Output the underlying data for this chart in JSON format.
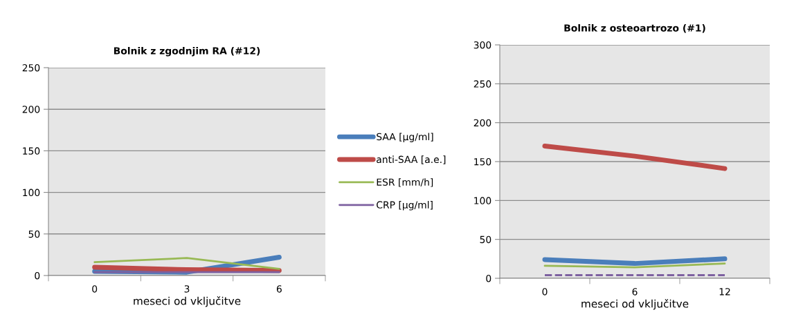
{
  "chart_data": [
    {
      "type": "line",
      "title": "Bolnik z zgodnjim RA (#12)",
      "xlabel": "meseci od vključitve",
      "categories": [
        "0",
        "3",
        "6"
      ],
      "ylim": [
        0,
        250
      ],
      "yticks": [
        0,
        50,
        100,
        150,
        200,
        250
      ],
      "grid": "y",
      "legend": "right",
      "marker": "none",
      "series": [
        {
          "name": "SAA [µg/ml]",
          "color": "#4a7ebb",
          "values": [
            5,
            4,
            22
          ]
        },
        {
          "name": "anti-SAA [a.e.]",
          "color": "#be4b48",
          "values": [
            10,
            7,
            6
          ]
        },
        {
          "name": "ESR [mm/h]",
          "color": "#98b954",
          "values": [
            16,
            21,
            8
          ]
        },
        {
          "name": "CRP [µg/ml]",
          "color": "#7d60a0",
          "values": [
            4,
            4,
            4
          ]
        }
      ]
    },
    {
      "type": "line",
      "title": "Bolnik z osteoartrozo (#1)",
      "xlabel": "meseci od vključitve",
      "categories": [
        "0",
        "6",
        "12"
      ],
      "ylim": [
        0,
        300
      ],
      "yticks": [
        0,
        50,
        100,
        150,
        200,
        250,
        300
      ],
      "grid": "y",
      "legend": false,
      "marker": "none",
      "series": [
        {
          "color": "#4a7ebb",
          "values": [
            24,
            19,
            25
          ]
        },
        {
          "color": "#be4b48",
          "values": [
            170,
            157,
            141
          ]
        },
        {
          "color": "#98b954",
          "values": [
            16,
            14,
            19
          ]
        },
        {
          "color": "#7d60a0",
          "values": [
            4,
            4,
            4
          ],
          "line_style": "dashed"
        }
      ]
    }
  ]
}
